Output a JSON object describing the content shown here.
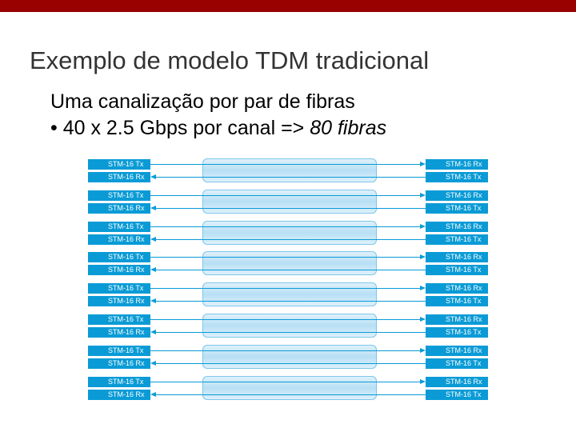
{
  "title": "Exemplo de modelo TDM tradicional",
  "bullets": {
    "line1": "Uma canalização por par de fibras",
    "line2_prefix": "• 40 x 2.5 Gbps por canal => ",
    "line2_emphasis": "80 fibras"
  },
  "diagram": {
    "pairs": [
      {
        "left_top": "STM-16 Tx",
        "left_bottom": "STM-16 Rx",
        "right_top": "STM-16 Rx",
        "right_bottom": "STM-16 Tx"
      },
      {
        "left_top": "STM-16 Tx",
        "left_bottom": "STM-16 Rx",
        "right_top": "STM-16 Rx",
        "right_bottom": "STM-16 Tx"
      },
      {
        "left_top": "STM-16 Tx",
        "left_bottom": "STM-16 Rx",
        "right_top": "STM-16 Rx",
        "right_bottom": "STM-16 Tx"
      },
      {
        "left_top": "STM-16 Tx",
        "left_bottom": "STM-16 Rx",
        "right_top": "STM-16 Rx",
        "right_bottom": "STM-16 Tx"
      },
      {
        "left_top": "STM-16 Tx",
        "left_bottom": "STM-16 Rx",
        "right_top": "STM-16 Rx",
        "right_bottom": "STM-16 Tx"
      },
      {
        "left_top": "STM-16 Tx",
        "left_bottom": "STM-16 Rx",
        "right_top": "STM-16 Rx",
        "right_bottom": "STM-16 Tx"
      },
      {
        "left_top": "STM-16 Tx",
        "left_bottom": "STM-16 Rx",
        "right_top": "STM-16 Rx",
        "right_bottom": "STM-16 Tx"
      },
      {
        "left_top": "STM-16 Tx",
        "left_bottom": "STM-16 Rx",
        "right_top": "STM-16 Rx",
        "right_bottom": "STM-16 Tx"
      }
    ]
  },
  "colors": {
    "accent_bar": "#990000",
    "label_fill": "#0a9bd6",
    "conduit_fill": "#b7dff4"
  }
}
